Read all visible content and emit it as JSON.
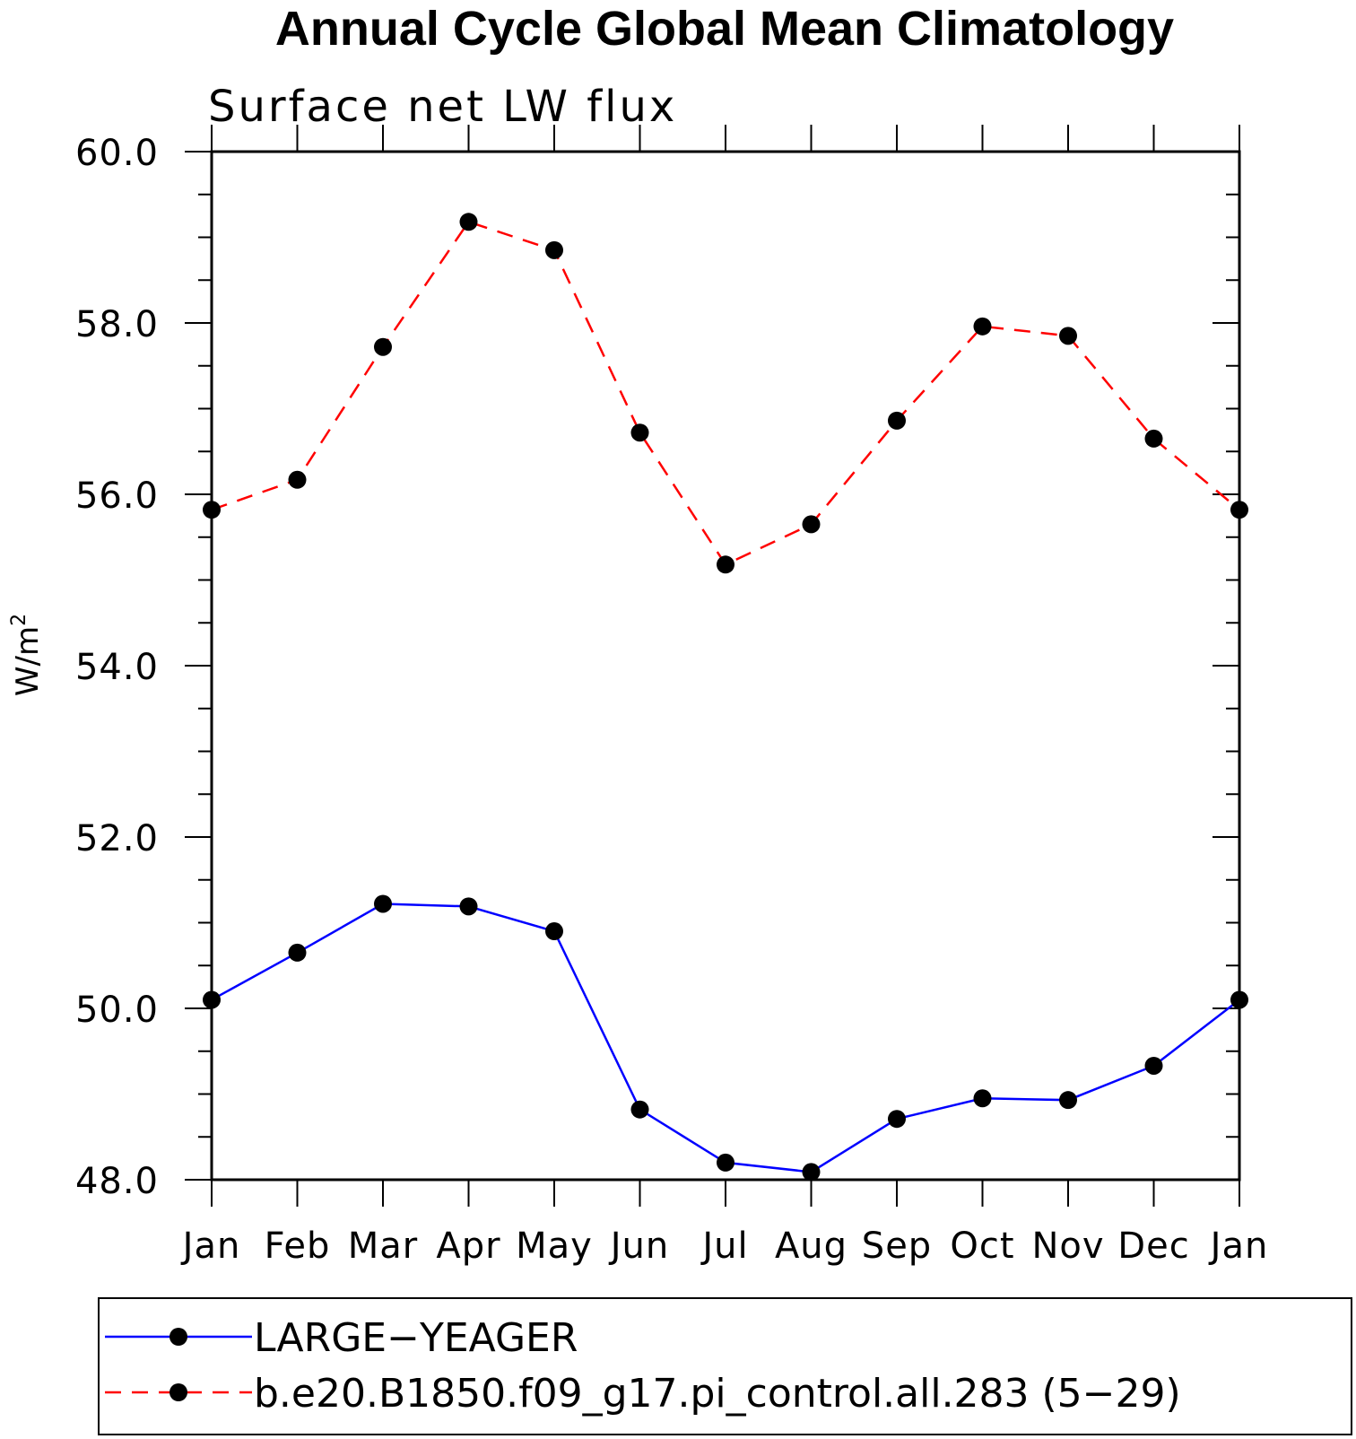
{
  "chart_data": {
    "type": "line",
    "title": "Annual Cycle Global Mean Climatology",
    "subtitle": "Surface net LW flux",
    "xlabel": "",
    "ylabel": "W/m",
    "ylabel_superscript": "2",
    "categories": [
      "Jan",
      "Feb",
      "Mar",
      "Apr",
      "May",
      "Jun",
      "Jul",
      "Aug",
      "Sep",
      "Oct",
      "Nov",
      "Dec",
      "Jan"
    ],
    "ylim": [
      48.0,
      60.0
    ],
    "yticks_major": [
      48.0,
      50.0,
      52.0,
      54.0,
      56.0,
      58.0,
      60.0
    ],
    "ytick_labels": [
      "48.0",
      "50.0",
      "52.0",
      "54.0",
      "56.0",
      "58.0",
      "60.0"
    ],
    "ytick_minor_step": 0.5,
    "grid": false,
    "legend_position": "bottom",
    "series": [
      {
        "name": "LARGE−YEAGER",
        "color": "#0000ff",
        "line_style": "solid",
        "marker": "filled-circle",
        "marker_color": "#000000",
        "values": [
          50.1,
          50.65,
          51.22,
          51.19,
          50.9,
          48.82,
          48.2,
          48.09,
          48.71,
          48.95,
          48.93,
          49.33,
          50.1
        ]
      },
      {
        "name": "b.e20.B1850.f09_g17.pi_control.all.283 (5−29)",
        "color": "#ff0000",
        "line_style": "dashed",
        "marker": "filled-circle",
        "marker_color": "#000000",
        "values": [
          55.82,
          56.17,
          57.72,
          59.18,
          58.85,
          56.72,
          55.18,
          55.65,
          56.86,
          57.96,
          57.85,
          56.65,
          55.82
        ]
      }
    ]
  }
}
